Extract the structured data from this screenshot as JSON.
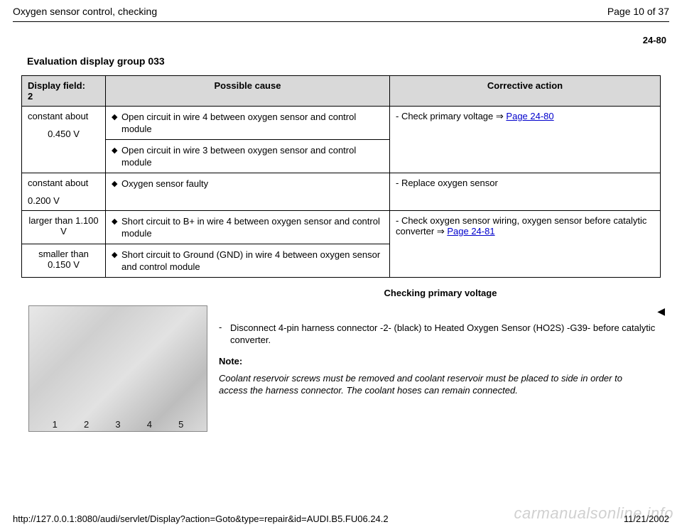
{
  "header": {
    "title": "Oxygen sensor control, checking",
    "page_label": "Page 10 of 37"
  },
  "page_number": "24-80",
  "section_title": "Evaluation display group 033",
  "table": {
    "headers": {
      "col1_line1": "Display field:",
      "col1_line2": "2",
      "col2": "Possible cause",
      "col3": "Corrective action"
    },
    "row1": {
      "df_top": "constant about",
      "df_val": "0.450 V",
      "cause_a": "Open circuit in wire 4 between oxygen sensor and control module",
      "cause_b": "Open circuit in wire 3 between oxygen sensor and control module",
      "action_prefix": "- Check primary voltage ",
      "action_link": "Page 24-80"
    },
    "row2": {
      "df_top": "constant about",
      "df_val": "0.200 V",
      "cause": "Oxygen sensor faulty",
      "action": "- Replace oxygen sensor"
    },
    "row3": {
      "df_a": "larger than 1.100 V",
      "df_b": "smaller than 0.150 V",
      "cause_a": "Short circuit to B+ in wire 4 between oxygen sensor and control module",
      "cause_b": "Short circuit to Ground (GND) in wire 4 between oxygen sensor and control module",
      "action_prefix": "- Check oxygen sensor wiring, oxygen sensor before catalytic converter ",
      "action_link": "Page 24-81"
    }
  },
  "sub_title": "Checking primary voltage",
  "figure": {
    "labels": [
      "1",
      "2",
      "3",
      "4",
      "5"
    ]
  },
  "instruction": {
    "text": "Disconnect 4-pin harness connector -2- (black) to Heated Oxygen Sensor (HO2S) -G39- before catalytic converter."
  },
  "note": {
    "label": "Note:",
    "body": "Coolant reservoir screws must be removed and coolant reservoir must be placed to side in order to access the harness connector. The coolant hoses can remain connected."
  },
  "footer": {
    "url": "http://127.0.0.1:8080/audi/servlet/Display?action=Goto&type=repair&id=AUDI.B5.FU06.24.2",
    "date": "11/21/2002"
  },
  "watermark": "carmanualsonline.info",
  "glyphs": {
    "bullet": "◆",
    "arrow": "⇒",
    "tri": "◀",
    "dash": "- "
  },
  "colors": {
    "link": "#0000cc",
    "header_bg": "#d9d9d9",
    "border": "#000000",
    "text": "#000000",
    "background": "#ffffff"
  }
}
